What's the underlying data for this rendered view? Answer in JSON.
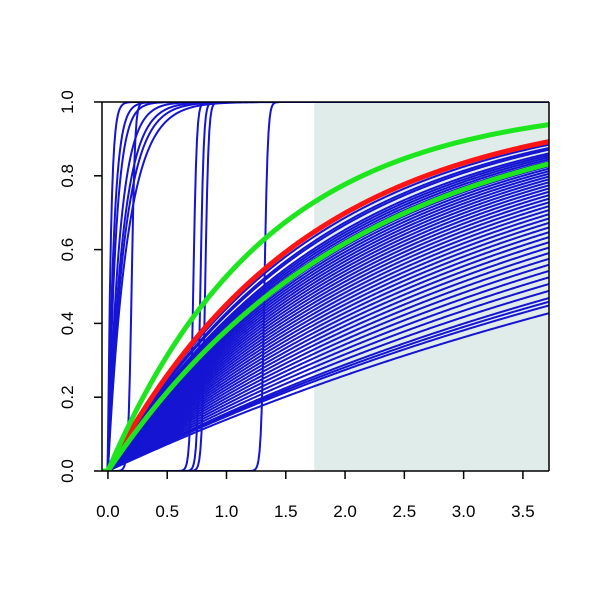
{
  "chart_data": {
    "type": "line",
    "title": "",
    "xlabel": "",
    "ylabel": "",
    "xlim": [
      -0.05,
      3.72
    ],
    "ylim": [
      0,
      1.0
    ],
    "grid": false,
    "legend": "none",
    "x_ticks": [
      "0.0",
      "0.5",
      "1.0",
      "1.5",
      "2.0",
      "2.5",
      "3.0",
      "3.5"
    ],
    "y_ticks": [
      "0.0",
      "0.2",
      "0.4",
      "0.6",
      "0.8",
      "1.0"
    ],
    "shaded_region": {
      "x_from": 1.74,
      "x_to": 3.72,
      "color": "#e0ecea"
    },
    "colors": {
      "bundle": "#1414d2",
      "reference": "#ff1414",
      "bounds": "#1ee61e",
      "axis": "#000000"
    },
    "exponential_rates": [
      0.15,
      0.16,
      0.165,
      0.17,
      0.18,
      0.19,
      0.2,
      0.21,
      0.22,
      0.23,
      0.24,
      0.25,
      0.26,
      0.27,
      0.28,
      0.29,
      0.3,
      0.31,
      0.32,
      0.33,
      0.34,
      0.35,
      0.36,
      0.37,
      0.38,
      0.39,
      0.4,
      0.41,
      0.42,
      0.43,
      0.44,
      0.45,
      0.46,
      0.47,
      0.48,
      0.49,
      0.5,
      0.51,
      0.52,
      0.53,
      0.55,
      0.56,
      0.58
    ],
    "fast_rates": [
      6,
      7,
      8,
      10,
      15,
      20,
      40
    ],
    "step_centers": [
      0.2,
      0.72,
      0.78,
      0.82,
      1.32
    ],
    "reference_rate": 0.6,
    "bound_rates": [
      0.48,
      0.75
    ]
  }
}
